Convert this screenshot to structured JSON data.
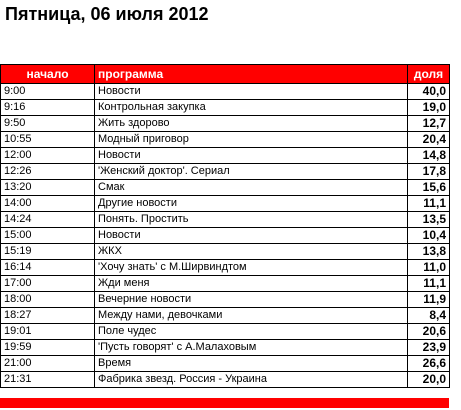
{
  "title": "Пятница, 06 июля 2012",
  "colors": {
    "header_bg": "#ff0000",
    "header_text": "#ffffff",
    "grid": "#000000"
  },
  "table": {
    "headers": {
      "time": "начало",
      "program": "программа",
      "share": "доля"
    },
    "rows": [
      {
        "time": "9:00",
        "program": "Новости",
        "share": "40,0"
      },
      {
        "time": "9:16",
        "program": "Контрольная закупка",
        "share": "19,0"
      },
      {
        "time": "9:50",
        "program": "Жить здорово",
        "share": "12,7"
      },
      {
        "time": "10:55",
        "program": "Модный приговор",
        "share": "20,4"
      },
      {
        "time": "12:00",
        "program": "Новости",
        "share": "14,8"
      },
      {
        "time": "12:26",
        "program": "'Женский доктор'. Сериал",
        "share": "17,8"
      },
      {
        "time": "13:20",
        "program": "Смак",
        "share": "15,6"
      },
      {
        "time": "14:00",
        "program": "Другие новости",
        "share": "11,1"
      },
      {
        "time": "14:24",
        "program": "Понять. Простить",
        "share": "13,5"
      },
      {
        "time": "15:00",
        "program": "Новости",
        "share": "10,4"
      },
      {
        "time": "15:19",
        "program": "ЖКХ",
        "share": "13,8"
      },
      {
        "time": "16:14",
        "program": "'Хочу знать' с М.Ширвиндтом",
        "share": "11,0"
      },
      {
        "time": "17:00",
        "program": "Жди меня",
        "share": "11,1"
      },
      {
        "time": "18:00",
        "program": "Вечерние новости",
        "share": "11,9"
      },
      {
        "time": "18:27",
        "program": "Между нами, девочками",
        "share": "8,4"
      },
      {
        "time": "19:01",
        "program": "Поле чудес",
        "share": "20,6"
      },
      {
        "time": "19:59",
        "program": "'Пусть говорят' с А.Малаховым",
        "share": "23,9"
      },
      {
        "time": "21:00",
        "program": "Время",
        "share": "26,6"
      },
      {
        "time": "21:31",
        "program": "Фабрика звезд. Россия - Украина",
        "share": "20,0"
      }
    ]
  }
}
